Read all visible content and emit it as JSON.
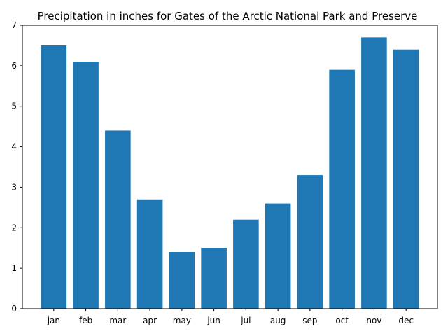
{
  "chart_data": {
    "type": "bar",
    "title": "Precipitation in inches for Gates of the Arctic National Park and Preserve",
    "xlabel": "",
    "ylabel": "",
    "categories": [
      "jan",
      "feb",
      "mar",
      "apr",
      "may",
      "jun",
      "jul",
      "aug",
      "sep",
      "oct",
      "nov",
      "dec"
    ],
    "values": [
      6.5,
      6.1,
      4.4,
      2.7,
      1.4,
      1.5,
      2.2,
      2.6,
      3.3,
      5.9,
      6.7,
      6.4
    ],
    "ylim": [
      0,
      7
    ],
    "yticks": [
      "0",
      "1",
      "2",
      "3",
      "4",
      "5",
      "6",
      "7"
    ],
    "grid": false,
    "bar_color": "#1f77b4"
  }
}
